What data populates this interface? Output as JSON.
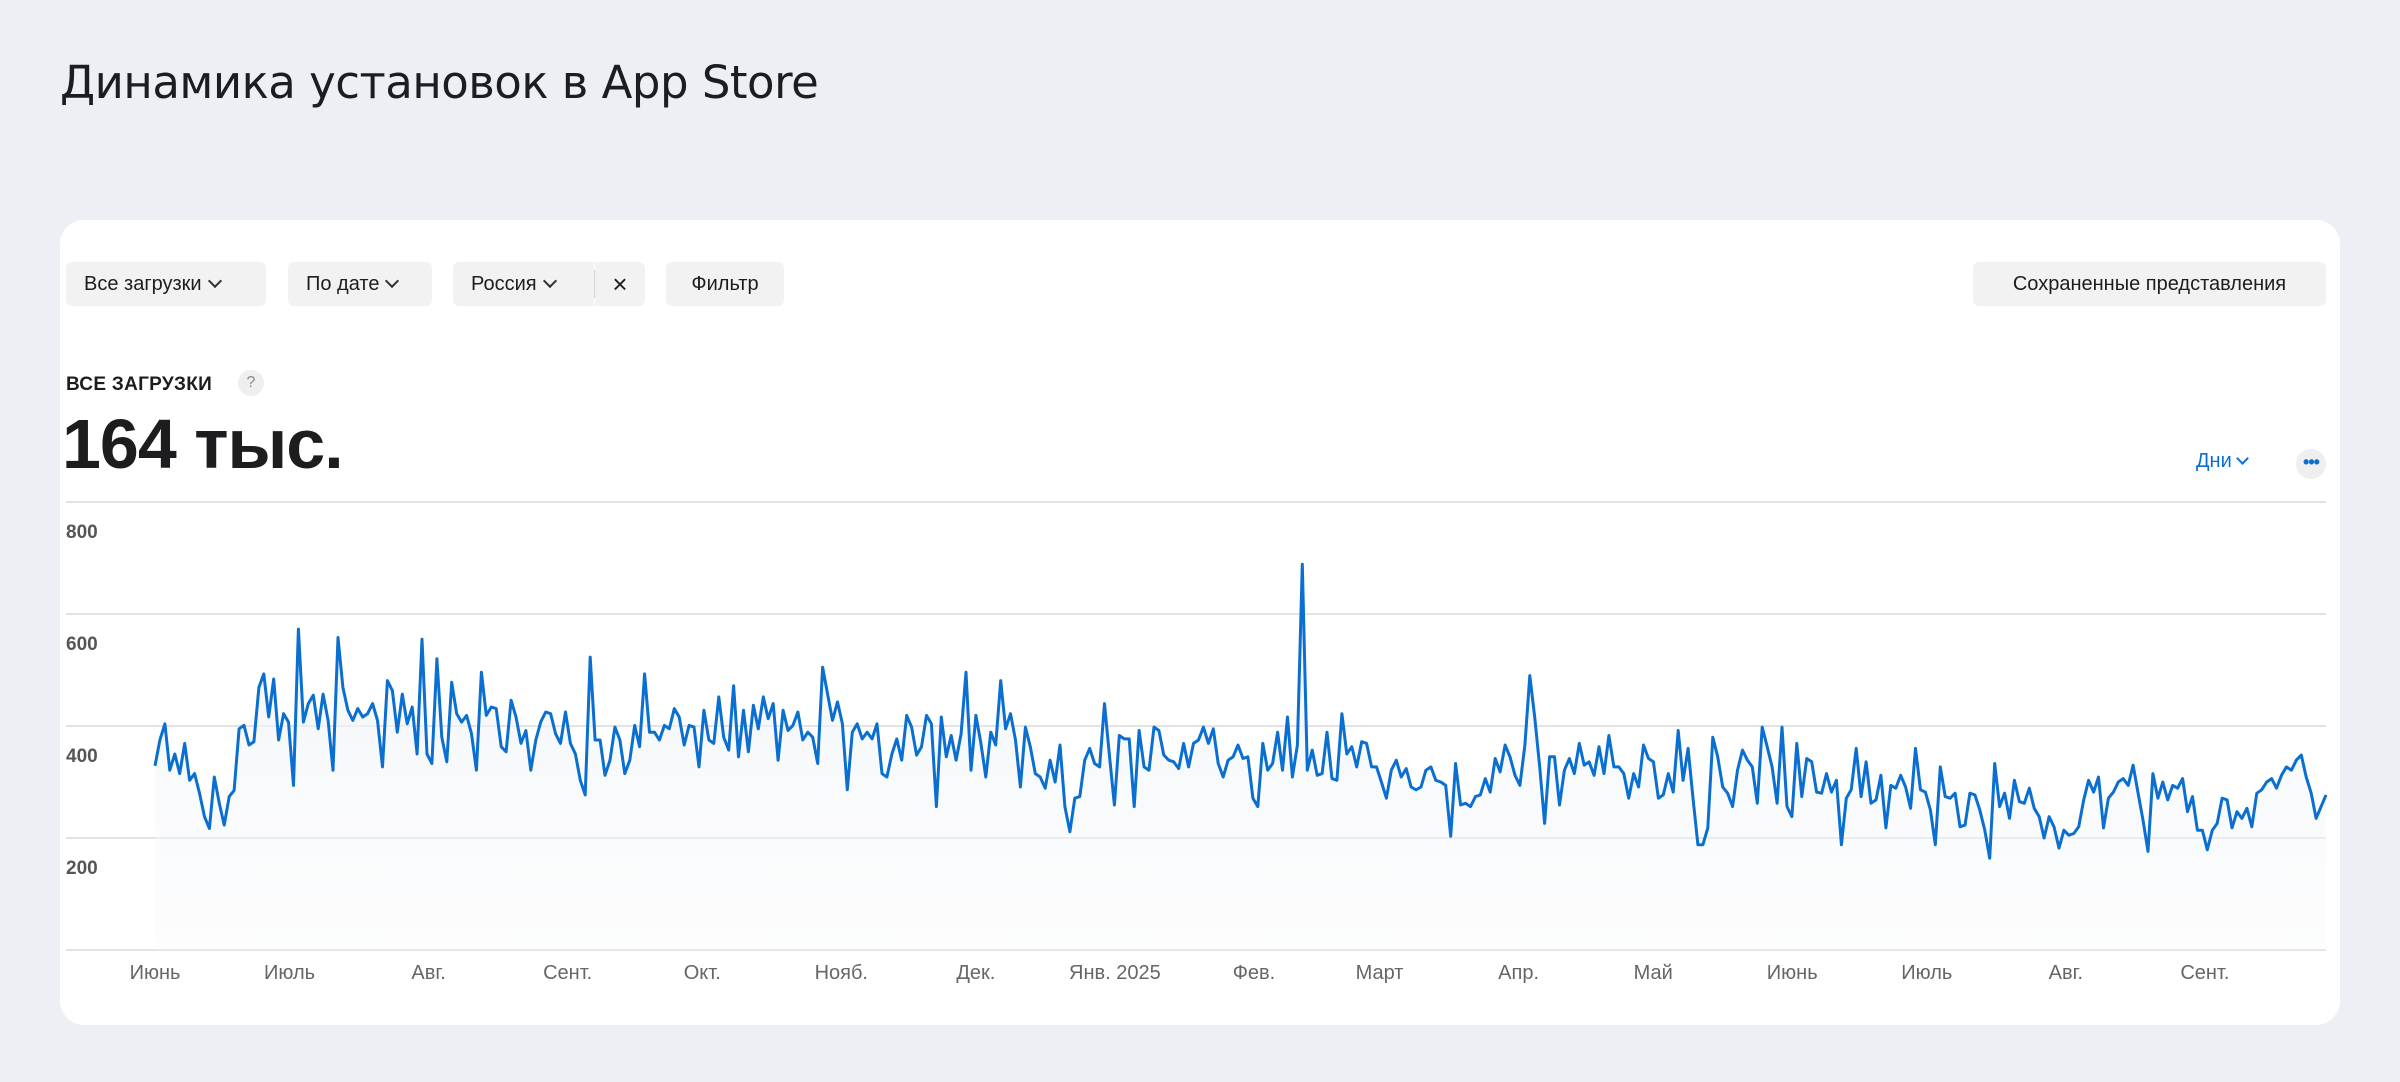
{
  "page_title": "Динамика установок в App Store",
  "toolbar": {
    "all_downloads": "Все загрузки",
    "by_date": "По дате",
    "country": "Россия",
    "clear": "×",
    "filter": "Фильтр",
    "saved_views": "Сохраненные представления"
  },
  "metric": {
    "label": "ВСЕ ЗАГРУЗКИ",
    "help": "?",
    "value": "164 тыс."
  },
  "controls": {
    "granularity": "Дни",
    "more": "•••"
  },
  "colors": {
    "line": "#0a6fd0",
    "background": "#eceff4",
    "grid": "#e3e3e6"
  },
  "chart_data": {
    "type": "line",
    "title": "",
    "xlabel": "",
    "ylabel": "",
    "ylim": [
      0,
      800
    ],
    "yticks": [
      200,
      400,
      600,
      800
    ],
    "x_range_days": [
      0,
      484
    ],
    "grid": true,
    "x_tick_labels": [
      {
        "label": "Июнь",
        "day": 0
      },
      {
        "label": "Июль",
        "day": 30
      },
      {
        "label": "Авг.",
        "day": 61
      },
      {
        "label": "Сент.",
        "day": 92
      },
      {
        "label": "Окт.",
        "day": 122
      },
      {
        "label": "Нояб.",
        "day": 153
      },
      {
        "label": "Дек.",
        "day": 183
      },
      {
        "label": "Янв. 2025",
        "day": 214
      },
      {
        "label": "Фев.",
        "day": 245
      },
      {
        "label": "Март",
        "day": 273
      },
      {
        "label": "Апр.",
        "day": 304
      },
      {
        "label": "Май",
        "day": 334
      },
      {
        "label": "Июнь",
        "day": 365
      },
      {
        "label": "Июль",
        "day": 395
      },
      {
        "label": "Авг.",
        "day": 426
      },
      {
        "label": "Сент.",
        "day": 457
      }
    ],
    "series": [
      {
        "name": "Все загрузки",
        "values": [
          329,
          375,
          404,
          321,
          350,
          315,
          369,
          303,
          315,
          280,
          238,
          217,
          309,
          262,
          223,
          274,
          285,
          395,
          401,
          366,
          372,
          469,
          493,
          416,
          484,
          375,
          422,
          407,
          294,
          573,
          407,
          440,
          455,
          395,
          457,
          410,
          321,
          558,
          469,
          428,
          410,
          431,
          416,
          422,
          440,
          410,
          327,
          481,
          463,
          389,
          457,
          404,
          434,
          350,
          555,
          350,
          333,
          520,
          380,
          336,
          478,
          422,
          407,
          419,
          386,
          321,
          496,
          419,
          434,
          431,
          363,
          354,
          446,
          416,
          369,
          392,
          321,
          375,
          407,
          425,
          422,
          386,
          369,
          425,
          369,
          350,
          303,
          277,
          523,
          375,
          375,
          312,
          339,
          398,
          375,
          315,
          339,
          401,
          363,
          493,
          389,
          389,
          375,
          401,
          395,
          431,
          416,
          366,
          401,
          398,
          327,
          428,
          375,
          369,
          452,
          380,
          357,
          472,
          345,
          428,
          354,
          437,
          395,
          452,
          413,
          440,
          339,
          428,
          392,
          401,
          425,
          375,
          389,
          380,
          333,
          505,
          457,
          410,
          443,
          404,
          286,
          389,
          404,
          377,
          389,
          377,
          404,
          315,
          309,
          350,
          377,
          339,
          419,
          398,
          348,
          363,
          419,
          404,
          256,
          416,
          345,
          383,
          339,
          386,
          496,
          321,
          419,
          369,
          309,
          389,
          366,
          481,
          395,
          422,
          375,
          291,
          398,
          363,
          315,
          309,
          289,
          339,
          300,
          366,
          256,
          211,
          271,
          274,
          339,
          360,
          333,
          327,
          440,
          348,
          259,
          383,
          377,
          377,
          256,
          392,
          327,
          321,
          398,
          392,
          348,
          339,
          336,
          324,
          369,
          327,
          369,
          375,
          398,
          369,
          395,
          333,
          309,
          339,
          345,
          366,
          342,
          345,
          271,
          256,
          369,
          321,
          333,
          389,
          321,
          416,
          309,
          366,
          689,
          321,
          357,
          312,
          315,
          389,
          306,
          303,
          422,
          350,
          363,
          327,
          372,
          369,
          327,
          327,
          300,
          271,
          321,
          339,
          309,
          324,
          291,
          286,
          291,
          321,
          327,
          303,
          300,
          294,
          203,
          333,
          259,
          262,
          256,
          274,
          277,
          306,
          282,
          342,
          318,
          366,
          345,
          312,
          294,
          366,
          490,
          416,
          327,
          226,
          345,
          345,
          259,
          321,
          342,
          315,
          369,
          330,
          336,
          312,
          363,
          315,
          383,
          327,
          327,
          315,
          271,
          315,
          291,
          366,
          342,
          336,
          271,
          277,
          315,
          282,
          392,
          303,
          360,
          271,
          188,
          188,
          218,
          380,
          345,
          291,
          280,
          256,
          321,
          357,
          339,
          327,
          262,
          398,
          363,
          327,
          262,
          398,
          256,
          238,
          369,
          274,
          342,
          336,
          282,
          280,
          315,
          282,
          303,
          188,
          271,
          286,
          360,
          274,
          336,
          262,
          268,
          312,
          218,
          294,
          289,
          312,
          291,
          253,
          360,
          286,
          282,
          250,
          188,
          327,
          274,
          271,
          280,
          220,
          223,
          280,
          277,
          250,
          214,
          164,
          333,
          256,
          280,
          235,
          303,
          265,
          262,
          289,
          253,
          238,
          200,
          238,
          220,
          182,
          214,
          205,
          208,
          220,
          268,
          303,
          282,
          309,
          218,
          271,
          282,
          300,
          306,
          294,
          330,
          280,
          232,
          176,
          315,
          271,
          300,
          268,
          294,
          289,
          306,
          247,
          274,
          214,
          214,
          179,
          214,
          226,
          271,
          268,
          218,
          247,
          235,
          253,
          220,
          280,
          286,
          300,
          306,
          289,
          312,
          327,
          321,
          339,
          348,
          309,
          280,
          235,
          256,
          277
        ]
      }
    ]
  }
}
